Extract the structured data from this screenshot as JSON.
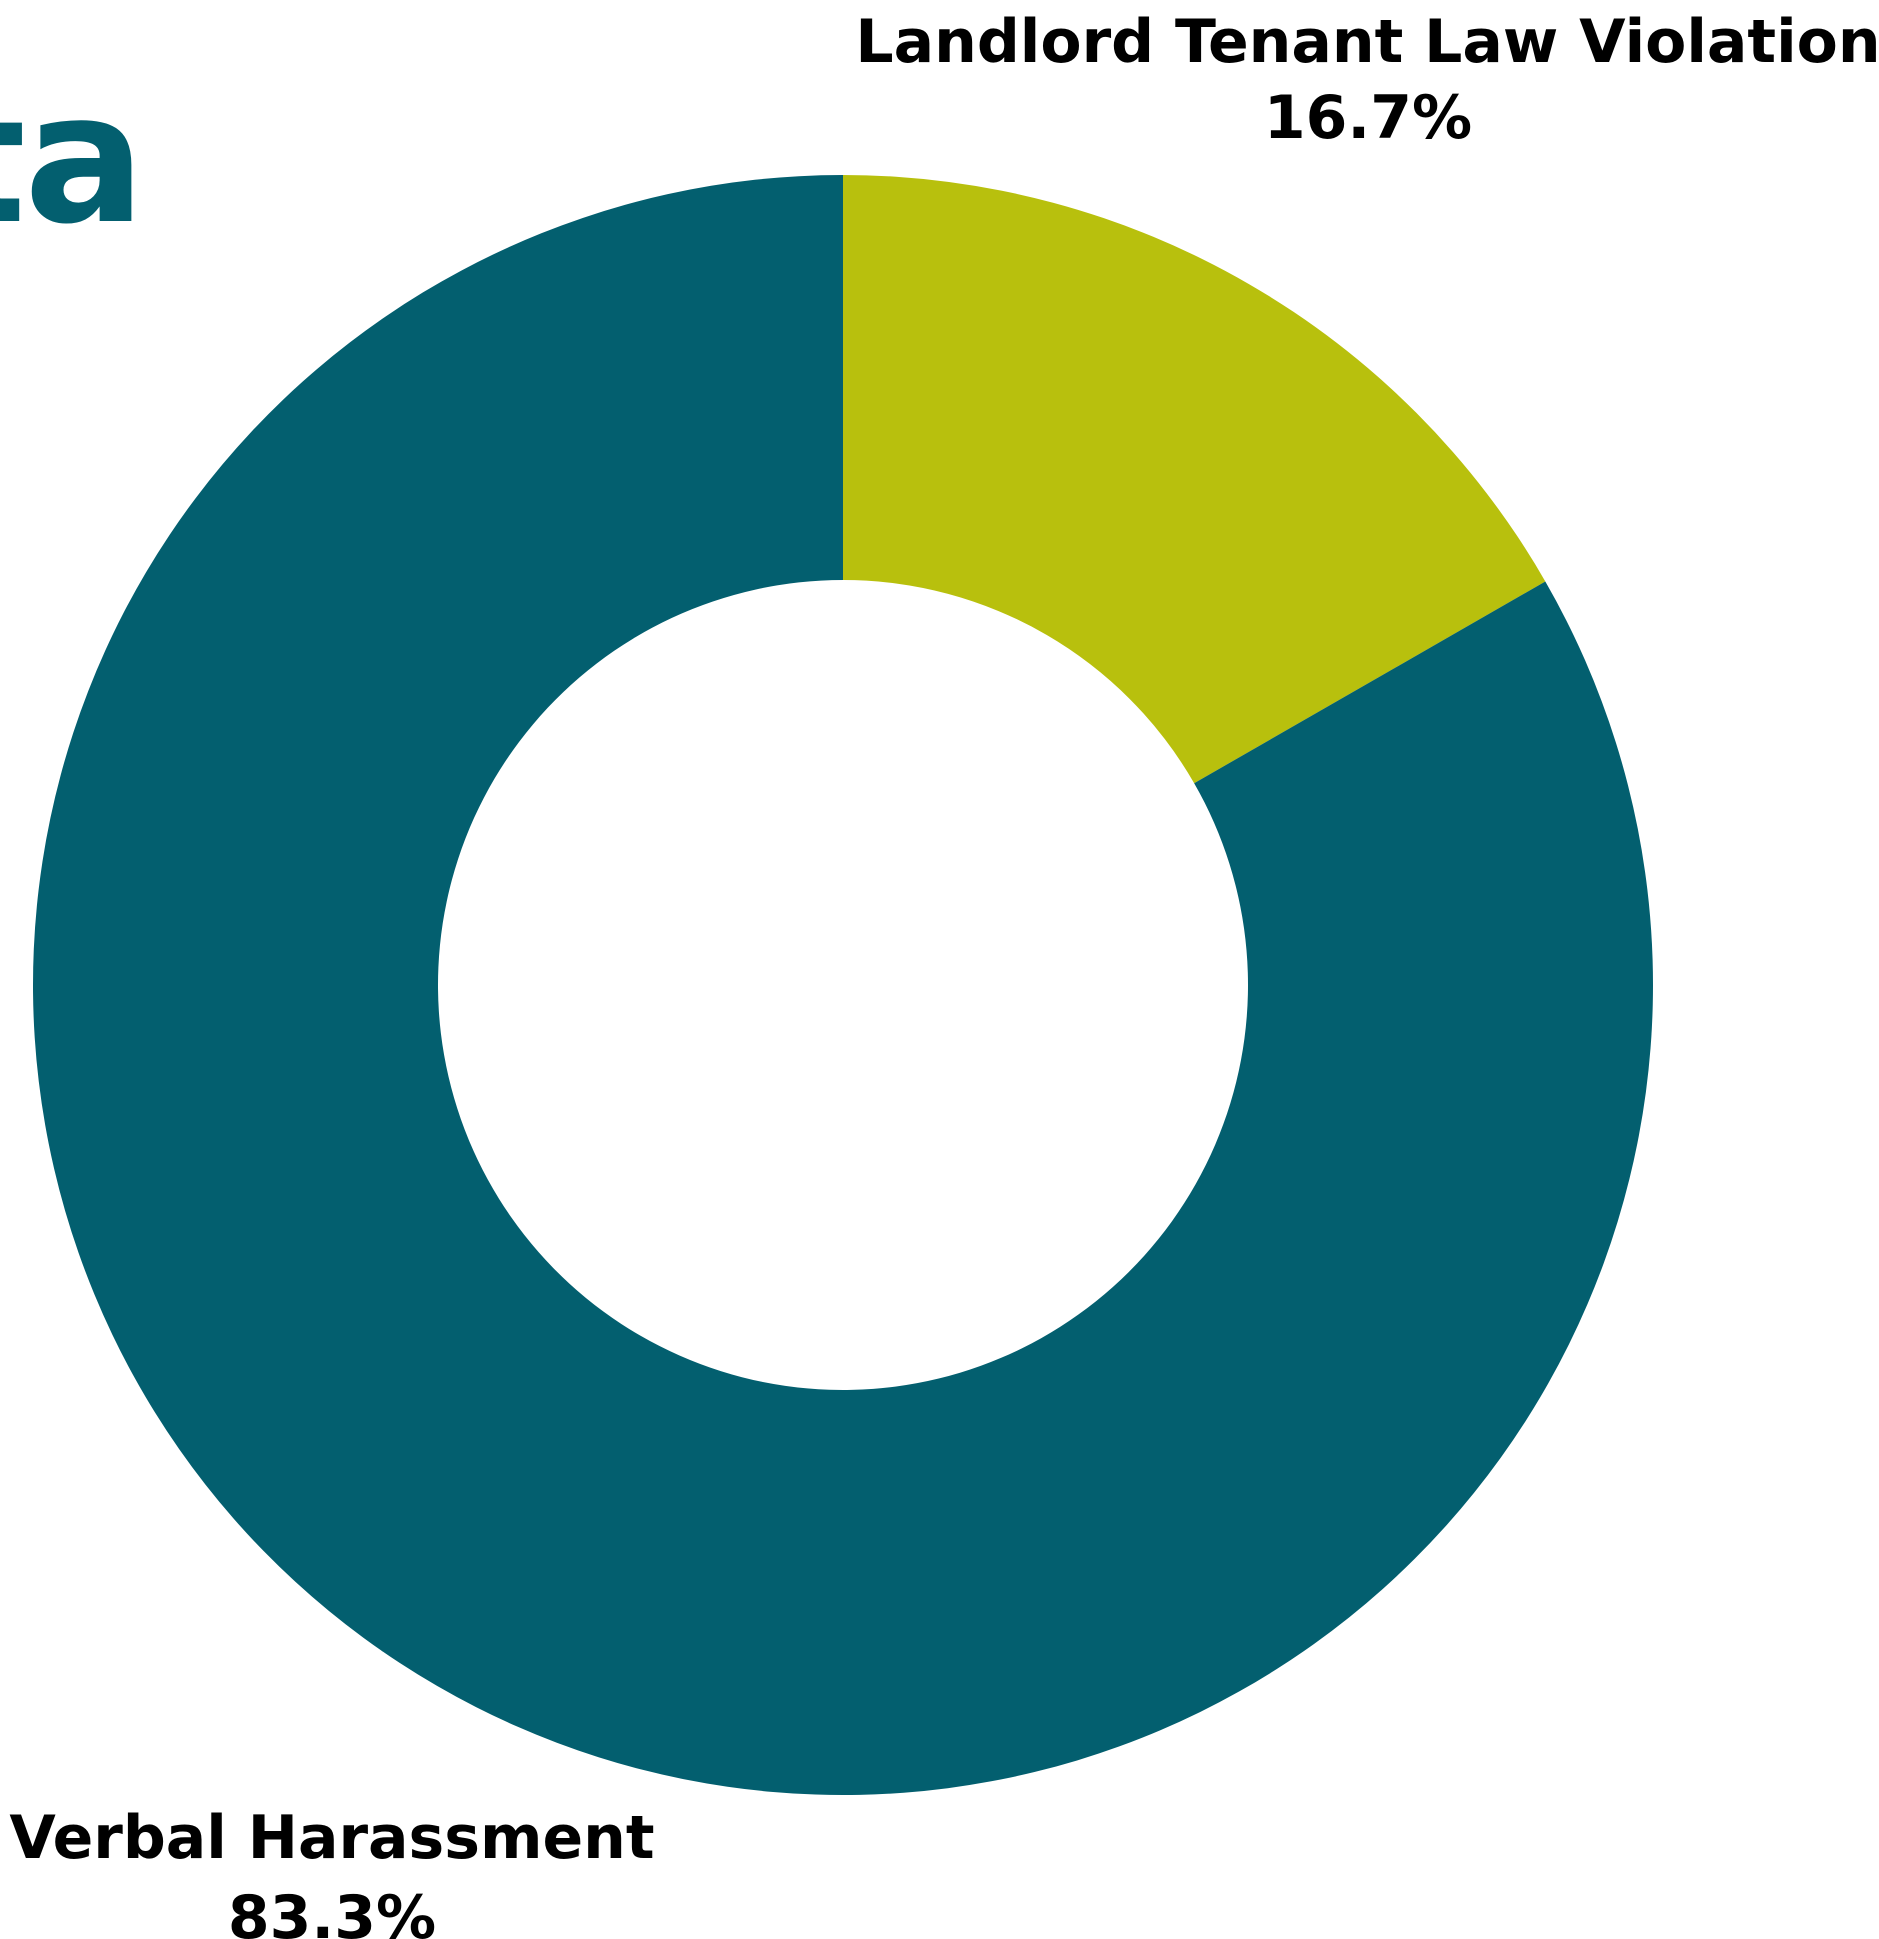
{
  "header": {
    "title_fragment": "ta"
  },
  "colors": {
    "title": "#035f6f"
  },
  "chart_data": {
    "type": "pie",
    "donut": true,
    "slices": [
      {
        "label": "Landlord Tenant Law Violation",
        "value": 16.7,
        "value_label": "16.7%",
        "color": "#b8c00d"
      },
      {
        "label": "Verbal Harassment",
        "value": 83.3,
        "value_label": "83.3%",
        "color": "#035f6f"
      }
    ],
    "legend": "none",
    "labels": "outside"
  }
}
